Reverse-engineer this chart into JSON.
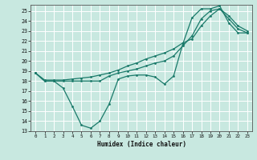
{
  "xlabel": "Humidex (Indice chaleur)",
  "bg_color": "#c8e8e0",
  "grid_color": "#ffffff",
  "line_color": "#1a7a6a",
  "xlim": [
    -0.5,
    23.5
  ],
  "ylim": [
    13,
    25.6
  ],
  "xticks": [
    0,
    1,
    2,
    3,
    4,
    5,
    6,
    7,
    8,
    9,
    10,
    11,
    12,
    13,
    14,
    15,
    16,
    17,
    18,
    19,
    20,
    21,
    22,
    23
  ],
  "yticks": [
    13,
    14,
    15,
    16,
    17,
    18,
    19,
    20,
    21,
    22,
    23,
    24,
    25
  ],
  "line1_x": [
    0,
    1,
    2,
    3,
    4,
    5,
    6,
    7,
    8,
    9,
    10,
    11,
    12,
    13,
    14,
    15,
    16,
    17,
    18,
    19,
    20,
    21,
    22,
    23
  ],
  "line1_y": [
    18.8,
    18.0,
    18.0,
    17.3,
    15.5,
    13.6,
    13.3,
    14.0,
    15.7,
    18.2,
    18.5,
    18.6,
    18.6,
    18.4,
    17.7,
    18.5,
    21.7,
    24.3,
    25.2,
    25.2,
    25.5,
    23.8,
    22.8,
    22.8
  ],
  "line2_x": [
    0,
    1,
    2,
    3,
    4,
    5,
    6,
    7,
    8,
    9,
    10,
    11,
    12,
    13,
    14,
    15,
    16,
    17,
    18,
    19,
    20,
    21,
    22,
    23
  ],
  "line2_y": [
    18.8,
    18.1,
    18.1,
    18.1,
    18.2,
    18.3,
    18.4,
    18.6,
    18.8,
    19.1,
    19.5,
    19.8,
    20.2,
    20.5,
    20.8,
    21.2,
    21.8,
    22.2,
    23.5,
    24.5,
    25.2,
    24.5,
    23.5,
    23.0
  ],
  "line3_x": [
    0,
    1,
    2,
    3,
    4,
    5,
    6,
    7,
    8,
    9,
    10,
    11,
    12,
    13,
    14,
    15,
    16,
    17,
    18,
    19,
    20,
    21,
    22,
    23
  ],
  "line3_y": [
    18.8,
    18.0,
    18.0,
    18.0,
    18.0,
    18.0,
    18.0,
    18.0,
    18.5,
    18.8,
    19.0,
    19.2,
    19.5,
    19.8,
    20.0,
    20.5,
    21.5,
    22.5,
    24.2,
    25.0,
    25.2,
    24.2,
    23.2,
    22.8
  ]
}
